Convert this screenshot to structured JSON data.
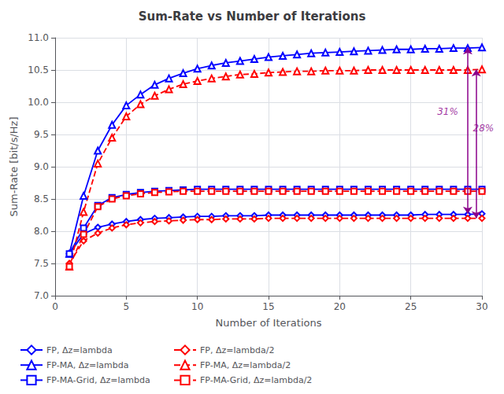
{
  "chart_data": {
    "type": "line",
    "title": "Sum-Rate vs Number of Iterations",
    "xlabel": "Number of Iterations",
    "ylabel": "Sum-Rate [bit/s/Hz]",
    "xlim": [
      0,
      30
    ],
    "ylim": [
      7,
      11
    ],
    "xticks": [
      0,
      5,
      10,
      15,
      20,
      25,
      30
    ],
    "yticks": [
      {
        "value": 7,
        "label": "7.0"
      },
      7.5,
      {
        "value": 8,
        "label": "8.0"
      },
      8.5,
      {
        "value": 9,
        "label": "9.0"
      },
      9.5,
      {
        "value": 10,
        "label": "10.0"
      },
      10.5,
      {
        "value": 11,
        "label": "11.0"
      }
    ],
    "grid": true,
    "legend": "lower left",
    "x": [
      1,
      2,
      3,
      4,
      5,
      6,
      7,
      8,
      9,
      10,
      11,
      12,
      13,
      14,
      15,
      16,
      17,
      18,
      19,
      20,
      21,
      22,
      23,
      24,
      25,
      26,
      27,
      28,
      29,
      30
    ],
    "series": [
      {
        "name": "FP, Δz=lambda",
        "color": "#0000FF",
        "marker": "diamond",
        "line_style": "solid",
        "values": [
          7.65,
          7.96,
          8.06,
          8.11,
          8.15,
          8.18,
          8.2,
          8.21,
          8.22,
          8.23,
          8.23,
          8.24,
          8.24,
          8.24,
          8.25,
          8.25,
          8.25,
          8.25,
          8.25,
          8.25,
          8.25,
          8.25,
          8.25,
          8.25,
          8.25,
          8.26,
          8.26,
          8.26,
          8.26,
          8.27
        ]
      },
      {
        "name": "FP-MA, Δz=lambda",
        "color": "#0000FF",
        "marker": "triangle",
        "line_style": "solid",
        "values": [
          7.65,
          8.55,
          9.25,
          9.65,
          9.95,
          10.12,
          10.27,
          10.37,
          10.45,
          10.52,
          10.57,
          10.61,
          10.64,
          10.67,
          10.7,
          10.72,
          10.74,
          10.76,
          10.77,
          10.78,
          10.79,
          10.8,
          10.81,
          10.82,
          10.82,
          10.83,
          10.83,
          10.84,
          10.84,
          10.85
        ]
      },
      {
        "name": "FP-MA-Grid, Δz=lambda",
        "color": "#0000FF",
        "marker": "square",
        "line_style": "solid",
        "values": [
          7.65,
          8.05,
          8.4,
          8.52,
          8.57,
          8.6,
          8.62,
          8.63,
          8.64,
          8.65,
          8.65,
          8.65,
          8.65,
          8.65,
          8.65,
          8.65,
          8.65,
          8.65,
          8.65,
          8.65,
          8.65,
          8.65,
          8.65,
          8.65,
          8.65,
          8.65,
          8.65,
          8.65,
          8.65,
          8.65
        ]
      },
      {
        "name": "FP, Δz=lambda/2",
        "color": "#FF0000",
        "marker": "diamond",
        "line_style": "dashed",
        "values": [
          7.5,
          7.85,
          7.97,
          8.05,
          8.1,
          8.13,
          8.15,
          8.16,
          8.17,
          8.18,
          8.18,
          8.19,
          8.19,
          8.19,
          8.2,
          8.2,
          8.2,
          8.2,
          8.2,
          8.2,
          8.2,
          8.2,
          8.2,
          8.2,
          8.2,
          8.2,
          8.2,
          8.2,
          8.2,
          8.2
        ]
      },
      {
        "name": "FP-MA, Δz=lambda/2",
        "color": "#FF0000",
        "marker": "triangle",
        "line_style": "dashed",
        "values": [
          7.45,
          8.3,
          9.05,
          9.45,
          9.78,
          9.97,
          10.1,
          10.2,
          10.28,
          10.33,
          10.37,
          10.4,
          10.43,
          10.44,
          10.46,
          10.47,
          10.48,
          10.48,
          10.49,
          10.49,
          10.49,
          10.5,
          10.5,
          10.5,
          10.5,
          10.5,
          10.5,
          10.5,
          10.5,
          10.51
        ]
      },
      {
        "name": "FP-MA-Grid, Δz=lambda/2",
        "color": "#FF0000",
        "marker": "square",
        "line_style": "dashed",
        "values": [
          7.45,
          7.95,
          8.38,
          8.5,
          8.55,
          8.58,
          8.6,
          8.61,
          8.62,
          8.62,
          8.62,
          8.62,
          8.62,
          8.62,
          8.62,
          8.62,
          8.62,
          8.62,
          8.62,
          8.62,
          8.62,
          8.62,
          8.62,
          8.62,
          8.62,
          8.62,
          8.62,
          8.62,
          8.62,
          8.62
        ]
      }
    ],
    "annotations": [
      {
        "text": "31%",
        "x": 28.5,
        "y": 9.85,
        "align": "right",
        "color": "#8B008B",
        "arrow": {
          "x": 29.0,
          "from": 8.27,
          "to": 10.85
        }
      },
      {
        "text": "28%",
        "x": 29.2,
        "y": 9.6,
        "align": "left",
        "color": "#8B008B",
        "arrow": {
          "x": 29.6,
          "from": 8.2,
          "to": 10.51
        }
      }
    ]
  }
}
